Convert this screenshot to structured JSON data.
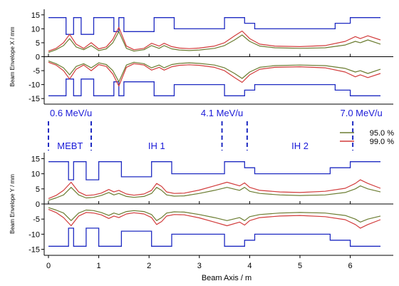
{
  "chart_data": {
    "type": "line",
    "xlabel": "Beam Axis  / m",
    "x_ticks": [
      "0",
      "1",
      "2",
      "3",
      "4",
      "5",
      "6"
    ],
    "xlim": [
      0,
      6.6
    ],
    "panels": [
      {
        "ylabel": "Beam Envelope  X  / mm",
        "ylim": [
          -17,
          17
        ],
        "y_ticks": [
          "15",
          "10",
          "5",
          "0",
          "-5",
          "-10",
          "-15"
        ],
        "aperture": [
          [
            0,
            14
          ],
          [
            0.35,
            14
          ],
          [
            0.35,
            8
          ],
          [
            0.5,
            8
          ],
          [
            0.5,
            14
          ],
          [
            0.65,
            14
          ],
          [
            0.65,
            8
          ],
          [
            0.9,
            8
          ],
          [
            0.9,
            14
          ],
          [
            1.3,
            14
          ],
          [
            1.3,
            9
          ],
          [
            1.4,
            9
          ],
          [
            1.4,
            14
          ],
          [
            1.5,
            14
          ],
          [
            1.5,
            9
          ],
          [
            2.1,
            9
          ],
          [
            2.1,
            14
          ],
          [
            2.5,
            14
          ],
          [
            2.5,
            10
          ],
          [
            3.5,
            10
          ],
          [
            3.5,
            14
          ],
          [
            3.9,
            14
          ],
          [
            3.9,
            12
          ],
          [
            4.1,
            12
          ],
          [
            4.1,
            10
          ],
          [
            5.7,
            10
          ],
          [
            5.7,
            12
          ],
          [
            6.0,
            12
          ],
          [
            6.0,
            14
          ],
          [
            6.6,
            14
          ]
        ],
        "series": [
          {
            "name": "95.0 %",
            "color": "#6b7d32",
            "x": [
              0,
              0.15,
              0.3,
              0.42,
              0.55,
              0.7,
              0.85,
              1.0,
              1.15,
              1.28,
              1.4,
              1.55,
              1.7,
              1.9,
              2.05,
              2.2,
              2.3,
              2.45,
              2.6,
              2.8,
              3.0,
              3.3,
              3.5,
              3.7,
              3.85,
              4.0,
              4.2,
              4.5,
              5.0,
              5.5,
              5.9,
              6.1,
              6.2,
              6.35,
              6.6
            ],
            "y": [
              1.5,
              2.5,
              4,
              6.5,
              3.5,
              2.5,
              4,
              2.2,
              2.8,
              5,
              9,
              3,
              2,
              2.5,
              4,
              3,
              4,
              2.8,
              2.4,
              2.2,
              2.4,
              3,
              4,
              6,
              7.8,
              5.5,
              3.8,
              3.2,
              3.0,
              3.2,
              4.2,
              5.5,
              5,
              6,
              4.5
            ]
          },
          {
            "name": "99.0 %",
            "color": "#d23c3c",
            "x": [
              0,
              0.15,
              0.3,
              0.42,
              0.55,
              0.7,
              0.85,
              1.0,
              1.15,
              1.28,
              1.4,
              1.55,
              1.7,
              1.9,
              2.05,
              2.2,
              2.3,
              2.45,
              2.6,
              2.8,
              3.0,
              3.3,
              3.5,
              3.7,
              3.85,
              4.0,
              4.2,
              4.5,
              5.0,
              5.5,
              5.9,
              6.1,
              6.2,
              6.35,
              6.6
            ],
            "y": [
              2,
              3,
              5,
              8,
              4.5,
              3,
              5,
              2.8,
              3.5,
              6.2,
              10.5,
              3.8,
              2.5,
              3,
              4.8,
              3.8,
              4.8,
              3.6,
              3.1,
              2.9,
              3.1,
              3.8,
              5,
              7.5,
              9.2,
              6.5,
              4.5,
              3.8,
              3.6,
              4,
              5.5,
              7.2,
              6.5,
              7.5,
              6
            ]
          }
        ]
      },
      {
        "ylabel": "Beam Envelope  Y  / mm",
        "ylim": [
          -17,
          17
        ],
        "y_ticks": [
          "15",
          "10",
          "5",
          "0",
          "-5",
          "-10",
          "-15"
        ],
        "aperture": [
          [
            0,
            14
          ],
          [
            0.4,
            14
          ],
          [
            0.4,
            8
          ],
          [
            0.5,
            8
          ],
          [
            0.5,
            14
          ],
          [
            0.75,
            14
          ],
          [
            0.75,
            8
          ],
          [
            1.0,
            8
          ],
          [
            1.0,
            14
          ],
          [
            1.45,
            14
          ],
          [
            1.45,
            9
          ],
          [
            2.05,
            9
          ],
          [
            2.05,
            14
          ],
          [
            2.45,
            14
          ],
          [
            2.45,
            10
          ],
          [
            3.5,
            10
          ],
          [
            3.5,
            14
          ],
          [
            3.9,
            14
          ],
          [
            3.9,
            12
          ],
          [
            4.1,
            12
          ],
          [
            4.1,
            10
          ],
          [
            5.6,
            10
          ],
          [
            5.6,
            12
          ],
          [
            6.0,
            12
          ],
          [
            6.0,
            14
          ],
          [
            6.6,
            14
          ]
        ],
        "series": [
          {
            "name": "95.0 %",
            "color": "#6b7d32",
            "x": [
              0,
              0.15,
              0.3,
              0.45,
              0.6,
              0.75,
              0.9,
              1.05,
              1.2,
              1.3,
              1.4,
              1.55,
              1.7,
              1.9,
              2.05,
              2.15,
              2.25,
              2.35,
              2.5,
              2.7,
              3.0,
              3.3,
              3.55,
              3.8,
              3.9,
              4.0,
              4.2,
              4.6,
              5.0,
              5.5,
              5.9,
              6.1,
              6.2,
              6.35,
              6.6
            ],
            "y": [
              1.2,
              2,
              3,
              5.5,
              3,
              2,
              2.2,
              2.8,
              3.8,
              3,
              3.5,
              2.5,
              2.2,
              2.5,
              3.5,
              5.5,
              4.5,
              3,
              2.6,
              2.7,
              3.5,
              4.5,
              5.5,
              4.5,
              5.5,
              4.2,
              3.5,
              3,
              2.8,
              3,
              3.8,
              5,
              6,
              5,
              4
            ]
          },
          {
            "name": "99.0 %",
            "color": "#d23c3c",
            "x": [
              0,
              0.15,
              0.3,
              0.45,
              0.6,
              0.75,
              0.9,
              1.05,
              1.2,
              1.3,
              1.4,
              1.55,
              1.7,
              1.9,
              2.05,
              2.15,
              2.25,
              2.35,
              2.5,
              2.7,
              3.0,
              3.3,
              3.55,
              3.8,
              3.9,
              4.0,
              4.2,
              4.6,
              5.0,
              5.5,
              5.9,
              6.1,
              6.2,
              6.35,
              6.6
            ],
            "y": [
              1.8,
              2.8,
              4.5,
              7.2,
              4,
              2.8,
              3,
              3.6,
              4.8,
              4,
              4.5,
              3.3,
              2.9,
              3.3,
              4.5,
              6.8,
              5.8,
              4,
              3.5,
              3.6,
              4.6,
              6,
              7.2,
              6,
              7,
              5.5,
              4.5,
              4,
              3.8,
              4.2,
              5.2,
              6.8,
              8,
              6.8,
              5.2
            ]
          }
        ]
      }
    ],
    "energies": [
      {
        "x": 0.0,
        "label": "0.6 MeV/u"
      },
      {
        "x": 3.45,
        "label": "4.1 MeV/u"
      },
      {
        "x": 6.05,
        "label": "7.0 MeV/u"
      }
    ],
    "boundaries": [
      0.0,
      0.85,
      3.45,
      3.95,
      6.05
    ],
    "sections": [
      {
        "x": 0.43,
        "label": "MEBT"
      },
      {
        "x": 2.15,
        "label": "IH 1"
      },
      {
        "x": 5.0,
        "label": "IH 2"
      }
    ],
    "legend_placement": "right",
    "grid": false
  }
}
